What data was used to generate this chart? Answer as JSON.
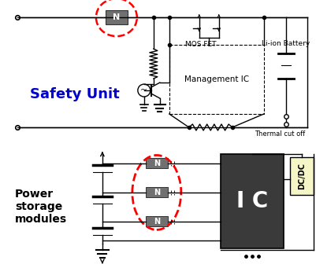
{
  "bg_color": "#ffffff",
  "safety_unit_label": "Safety Unit",
  "safety_unit_color": "#0000cc",
  "power_storage_label": "Power\nstorage\nmodules",
  "mosfet_label": "MOS FET",
  "management_ic_label": "Management IC",
  "li_ion_label": "Li-ion Battery",
  "thermal_label": "Thermal cut off",
  "ic_label": "I C",
  "dcdc_label": "DC/DC",
  "n_box_color": "#707070",
  "n_text_color": "#ffffff",
  "ic_box_color": "#3a3a3a",
  "dcdc_box_color": "#f5f5c8",
  "dashed_circle_color": "#ff0000",
  "line_color": "#000000"
}
